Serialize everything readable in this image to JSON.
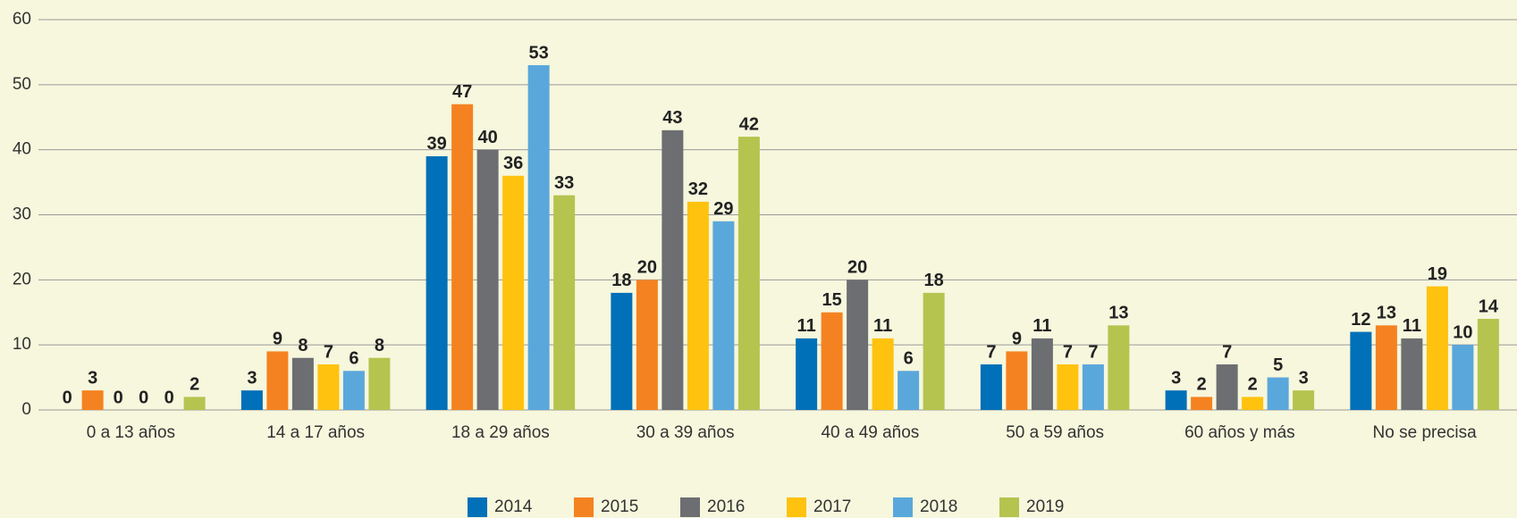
{
  "chart_data": {
    "type": "bar",
    "categories": [
      "0 a 13 años",
      "14 a 17 años",
      "18 a 29 años",
      "30 a 39 años",
      "40 a 49 años",
      "50 a 59 años",
      "60 años y más",
      "No se precisa"
    ],
    "series": [
      {
        "name": "2014",
        "color": "#0070b8",
        "values": [
          0,
          3,
          39,
          18,
          11,
          7,
          3,
          12
        ]
      },
      {
        "name": "2015",
        "color": "#f58220",
        "values": [
          3,
          9,
          47,
          20,
          15,
          9,
          2,
          13
        ]
      },
      {
        "name": "2016",
        "color": "#6d6e71",
        "values": [
          0,
          8,
          40,
          43,
          20,
          11,
          7,
          11
        ]
      },
      {
        "name": "2017",
        "color": "#ffc20e",
        "values": [
          0,
          7,
          36,
          32,
          11,
          7,
          2,
          19
        ]
      },
      {
        "name": "2018",
        "color": "#5aa7dc",
        "values": [
          0,
          6,
          53,
          29,
          6,
          7,
          5,
          10
        ]
      },
      {
        "name": "2019",
        "color": "#b5c44f",
        "values": [
          2,
          8,
          33,
          42,
          18,
          13,
          3,
          14
        ]
      }
    ],
    "ylim": [
      0,
      60
    ],
    "yticks": [
      0,
      10,
      20,
      30,
      40,
      50,
      60
    ],
    "grid": true,
    "legend": "bottom"
  }
}
